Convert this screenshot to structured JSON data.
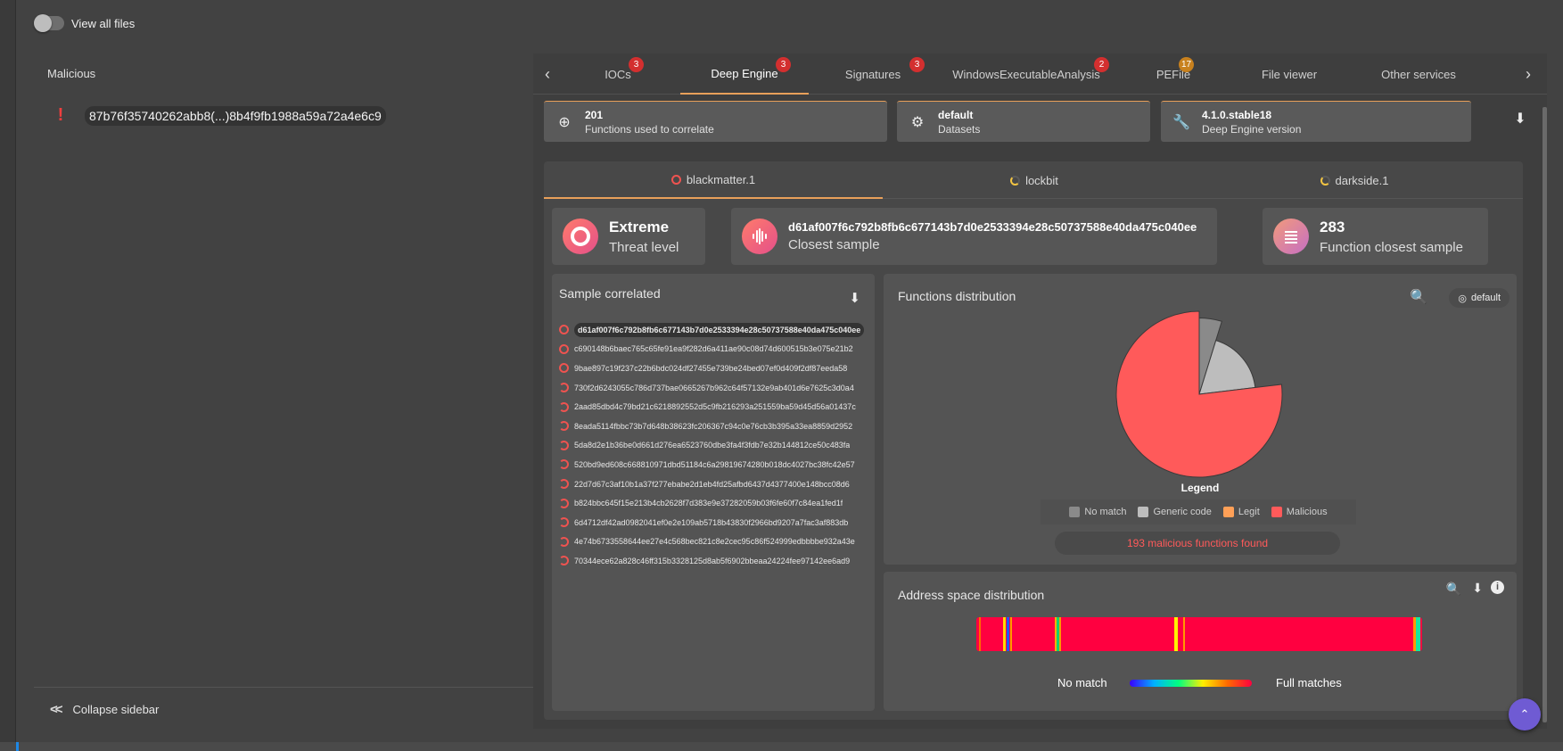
{
  "sidebar": {
    "toggle_label": "View all files",
    "section_title": "Malicious",
    "file_name": "87b76f35740262abb8(...)8b4f9fb1988a59a72a4e6c9",
    "collapse_label": "Collapse sidebar"
  },
  "tabs": [
    {
      "label": "IOCs",
      "badge": "3"
    },
    {
      "label": "Deep Engine",
      "badge": "3"
    },
    {
      "label": "Signatures",
      "badge": "3"
    },
    {
      "label": "WindowsExecutableAnalysis",
      "badge": "2"
    },
    {
      "label": "PEFile",
      "badge": "17"
    },
    {
      "label": "File viewer",
      "badge": ""
    },
    {
      "label": "Other services",
      "badge": ""
    }
  ],
  "info_cards": [
    {
      "value": "201",
      "label": "Functions used to correlate"
    },
    {
      "value": "default",
      "label": "Datasets"
    },
    {
      "value": "4.1.0.stable18",
      "label": "Deep Engine version"
    }
  ],
  "sub_tabs": [
    "blackmatter.1",
    "lockbit",
    "darkside.1"
  ],
  "stats": {
    "threat_value": "Extreme",
    "threat_label": "Threat level",
    "closest_value": "d61af007f6c792b8fb6c677143b7d0e2533394e28c50737588e40da475c040ee",
    "closest_label": "Closest sample",
    "func_value": "283",
    "func_label": "Function closest sample"
  },
  "sample_panel": {
    "title": "Sample correlated",
    "samples": [
      "d61af007f6c792b8fb6c677143b7d0e2533394e28c50737588e40da475c040ee",
      "c690148b6baec765c65fe91ea9f282d6a411ae90c08d74d600515b3e075e21b2",
      "9bae897c19f237c22b6bdc024df27455e739be24bed07ef0d409f2df87eeda58",
      "730f2d6243055c786d737bae0665267b962c64f57132e9ab401d6e7625c3d0a4",
      "2aad85dbd4c79bd21c6218892552d5c9fb216293a251559ba59d45d56a01437c",
      "8eada5114fbbc73b7d648b38623fc206367c94c0e76cb3b395a33ea8859d2952",
      "5da8d2e1b36be0d661d276ea6523760dbe3fa4f3fdb7e32b144812ce50c483fa",
      "520bd9ed608c668810971dbd51184c6a29819674280b018dc4027bc38fc42e57",
      "22d7d67c3af10b1a37f277ebabe2d1eb4fd25afbd6437d4377400e148bcc08d6",
      "b824bbc645f15e213b4cb2628f7d383e9e37282059b03f6fe60f7c84ea1fed1f",
      "6d4712df42ad0982041ef0e2e109ab5718b43830f2966bd9207a7fac3af883db",
      "4e74b6733558644ee27e4c568bec821c8e2cec95c86f524999edbbbbe932a43e",
      "70344ece62a828c46ff315b3328125d8ab5f6902bbeaa24224fee97142ee6ad9"
    ]
  },
  "functions_panel": {
    "title": "Functions distribution",
    "dataset_chip": "default",
    "legend_title": "Legend",
    "legend": [
      {
        "label": "No match",
        "color": "#8a8a8a"
      },
      {
        "label": "Generic code",
        "color": "#bdbdbd"
      },
      {
        "label": "Legit",
        "color": "#ffa057"
      },
      {
        "label": "Malicious",
        "color": "#ff5a5a"
      }
    ],
    "found_text": "193 malicious functions found"
  },
  "address_panel": {
    "title": "Address space distribution",
    "scale_left": "No match",
    "scale_right": "Full matches"
  },
  "chart_data": {
    "type": "pie",
    "categories": [
      "No match",
      "Generic code",
      "Legit",
      "Malicious"
    ],
    "values": [
      12,
      46,
      0,
      193
    ],
    "legend": "bottom"
  }
}
